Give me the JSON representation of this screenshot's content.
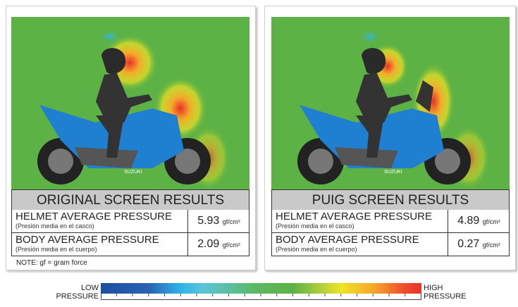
{
  "panels": [
    {
      "title": "ORIGINAL SCREEN RESULTS",
      "rows": [
        {
          "label": "HELMET AVERAGE PRESSURE",
          "sublabel": "(Presión media en el casco)",
          "value": "5.93",
          "unit": "gf/cm²"
        },
        {
          "label": "BODY AVERAGE PRESSURE",
          "sublabel": "(Presión media en el cuerpo)",
          "value": "2.09",
          "unit": "gf/cm²"
        }
      ],
      "note": "NOTE: gf = gram force",
      "screen": "original"
    },
    {
      "title": "PUIG SCREEN RESULTS",
      "rows": [
        {
          "label": "HELMET AVERAGE PRESSURE",
          "sublabel": "(Presión media en el casco)",
          "value": "4.89",
          "unit": "gf/cm²"
        },
        {
          "label": "BODY AVERAGE PRESSURE",
          "sublabel": "(Presión media en el cuerpo)",
          "value": "0.27",
          "unit": "gf/cm²"
        }
      ],
      "screen": "puig"
    }
  ],
  "legend": {
    "low_1": "LOW",
    "low_2": "PRESSURE",
    "high_1": "HIGH",
    "high_2": "PRESSURE",
    "colors": [
      "#1e4fa0",
      "#2fb5e8",
      "#5db245",
      "#eee423",
      "#f5a82a",
      "#e8322a"
    ]
  },
  "bike_brand": "SUZUKI"
}
